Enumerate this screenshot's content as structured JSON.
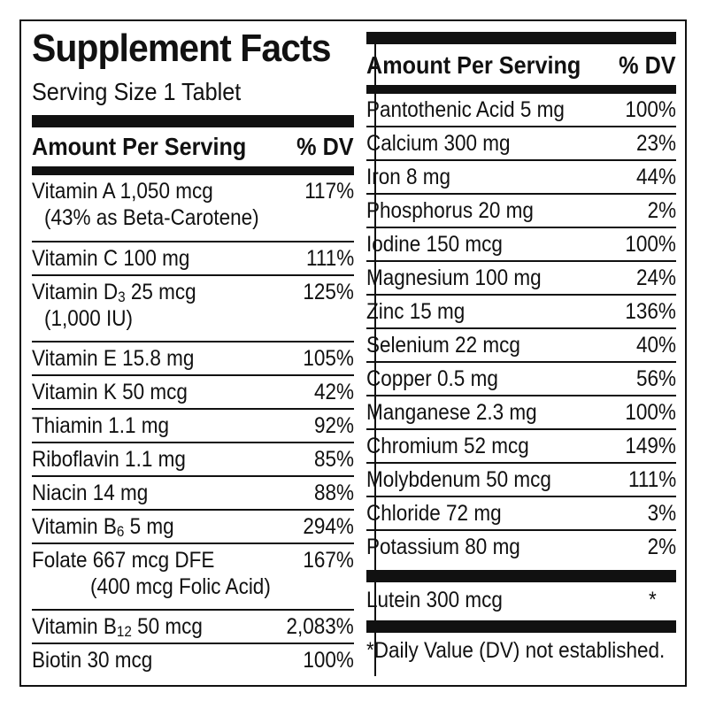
{
  "title": "Supplement Facts",
  "serving_size": "Serving Size 1 Tablet",
  "header": {
    "amount": "Amount Per Serving",
    "dv": "% DV"
  },
  "left": [
    {
      "name": "Vitamin A 1,050 mcg",
      "sub": "(43% as Beta-Carotene)",
      "dv": "117%"
    },
    {
      "name": "Vitamin C 100 mg",
      "dv": "111%"
    },
    {
      "name_pre": "Vitamin D",
      "name_sub": "3",
      "name_post": " 25 mcg",
      "sub": "(1,000 IU)",
      "dv": "125%"
    },
    {
      "name": "Vitamin E 15.8 mg",
      "dv": "105%"
    },
    {
      "name": "Vitamin K 50 mcg",
      "dv": "42%"
    },
    {
      "name": "Thiamin 1.1 mg",
      "dv": "92%"
    },
    {
      "name": "Riboflavin 1.1 mg",
      "dv": "85%"
    },
    {
      "name": "Niacin 14 mg",
      "dv": "88%"
    },
    {
      "name_pre": "Vitamin B",
      "name_sub": "6",
      "name_post": " 5 mg",
      "dv": "294%"
    },
    {
      "name": "Folate 667 mcg DFE",
      "sub": "(400 mcg Folic Acid)",
      "dv": "167%"
    },
    {
      "name_pre": "Vitamin B",
      "name_sub": "12",
      "name_post": " 50 mcg",
      "dv": "2,083%"
    },
    {
      "name": "Biotin 30 mcg",
      "dv": "100%"
    }
  ],
  "right": [
    {
      "name": "Pantothenic Acid 5 mg",
      "dv": "100%"
    },
    {
      "name": "Calcium 300 mg",
      "dv": "23%"
    },
    {
      "name": "Iron 8 mg",
      "dv": "44%"
    },
    {
      "name": "Phosphorus 20 mg",
      "dv": "2%"
    },
    {
      "name": "Iodine 150 mcg",
      "dv": "100%"
    },
    {
      "name": "Magnesium 100 mg",
      "dv": "24%"
    },
    {
      "name": "Zinc 15 mg",
      "dv": "136%"
    },
    {
      "name": "Selenium 22 mcg",
      "dv": "40%"
    },
    {
      "name": "Copper 0.5 mg",
      "dv": "56%"
    },
    {
      "name": "Manganese 2.3 mg",
      "dv": "100%"
    },
    {
      "name": "Chromium 52 mcg",
      "dv": "149%"
    },
    {
      "name": "Molybdenum 50 mcg",
      "dv": "111%"
    },
    {
      "name": "Chloride 72 mg",
      "dv": "3%"
    },
    {
      "name": "Potassium 80 mg",
      "dv": "2%"
    }
  ],
  "other": {
    "name": "Lutein 300 mcg",
    "dv": "*"
  },
  "footnote": "*Daily Value (DV) not established."
}
